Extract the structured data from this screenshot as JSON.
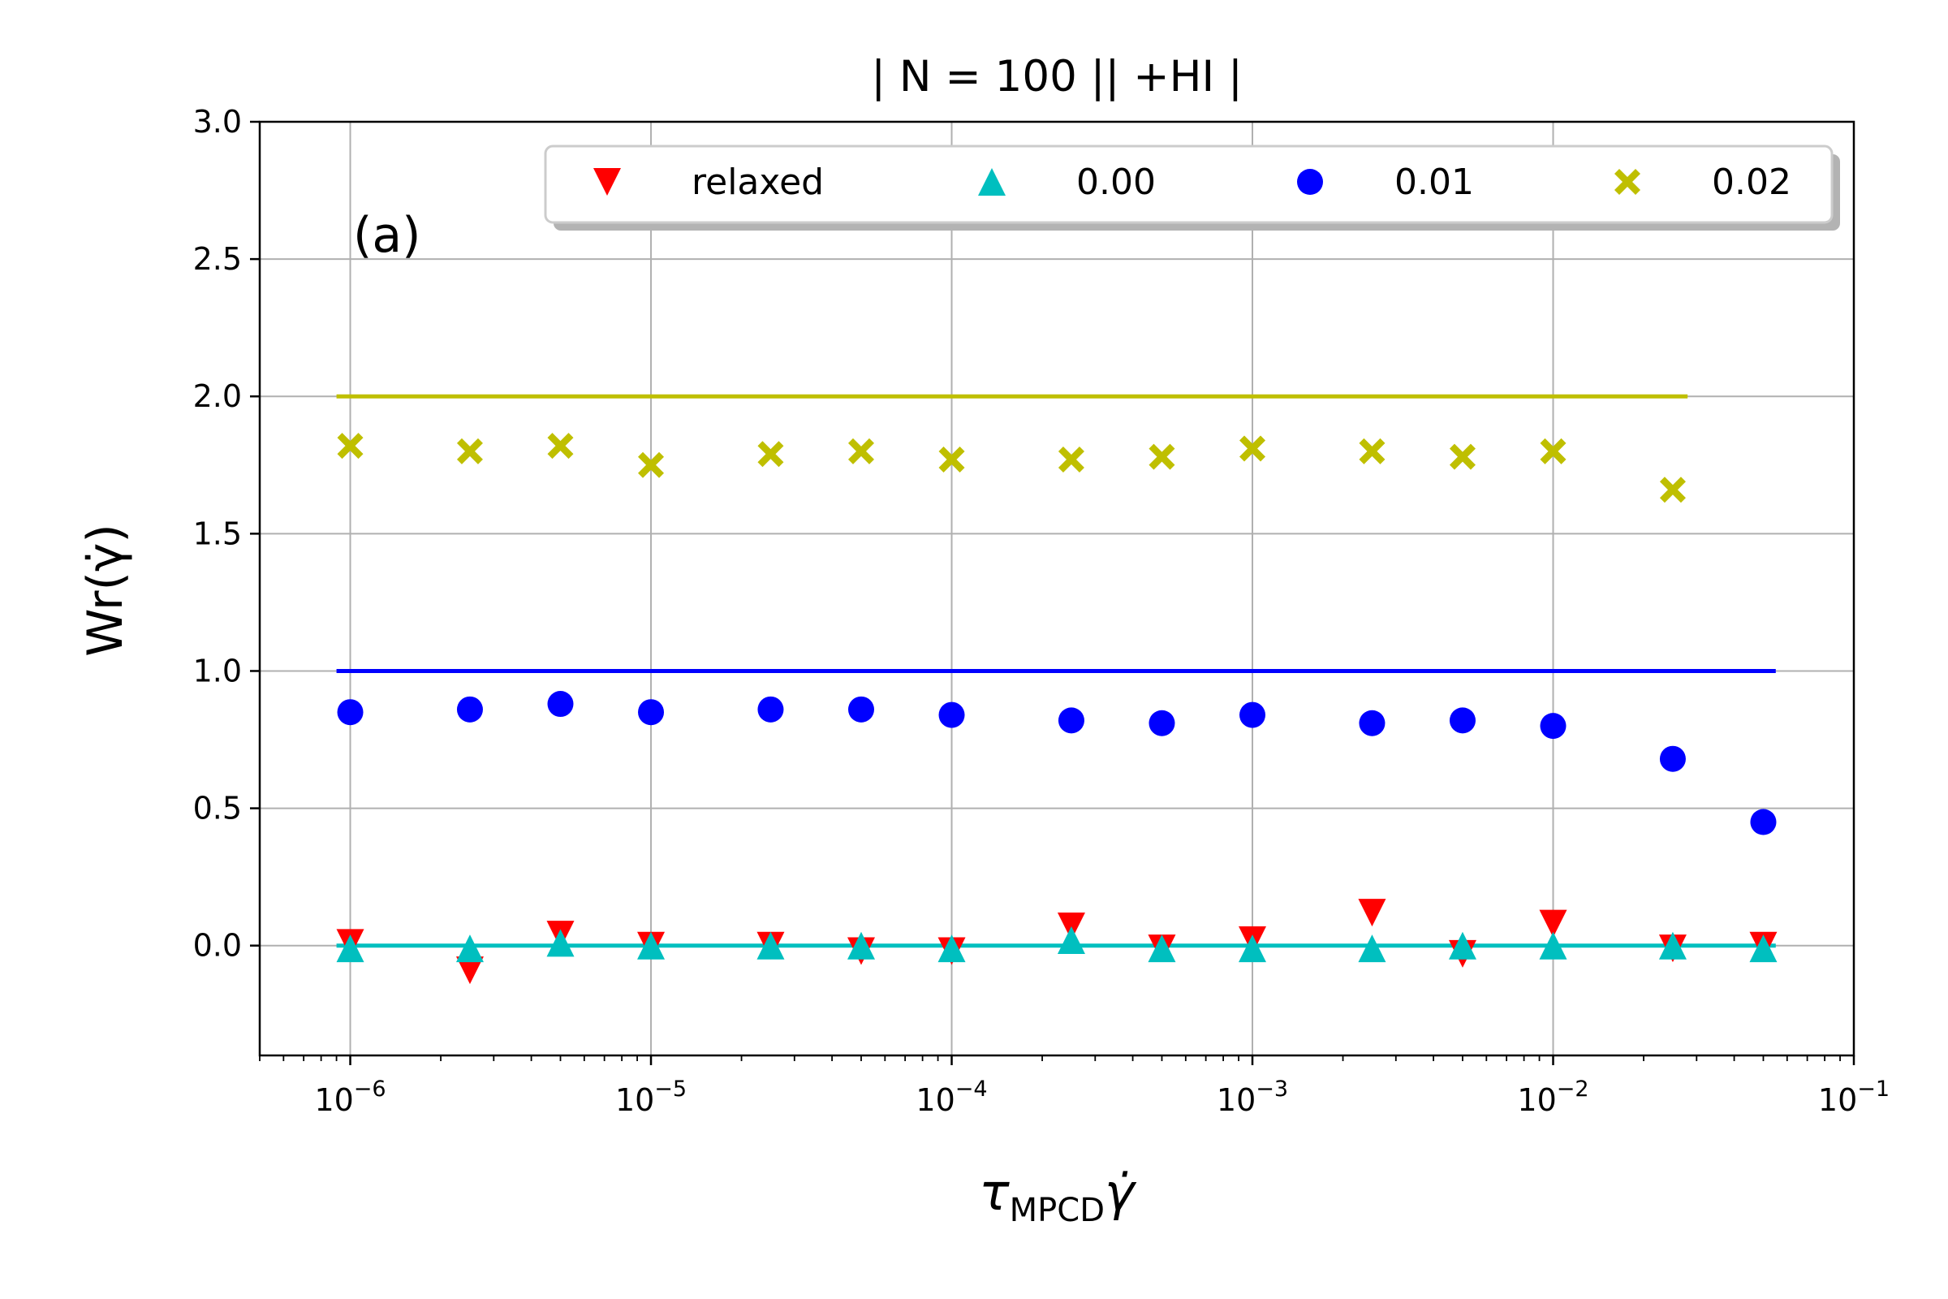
{
  "chart_data": {
    "type": "scatter",
    "title": "| N = 100 || +HI  |",
    "panel_label": "(a)",
    "xlabel": {
      "main": "τ",
      "sub": "MPCD",
      "tail": "γ̇"
    },
    "ylabel": "Wr(γ̇)",
    "xscale": "log",
    "xlim": [
      5e-07,
      0.1
    ],
    "ylim": [
      -0.4,
      3.0
    ],
    "grid": true,
    "legend_position": "top-right",
    "x_ticks": [
      {
        "value": 1e-06,
        "base": "10",
        "exp": "−6"
      },
      {
        "value": 1e-05,
        "base": "10",
        "exp": "−5"
      },
      {
        "value": 0.0001,
        "base": "10",
        "exp": "−4"
      },
      {
        "value": 0.001,
        "base": "10",
        "exp": "−3"
      },
      {
        "value": 0.01,
        "base": "10",
        "exp": "−2"
      },
      {
        "value": 0.1,
        "base": "10",
        "exp": "−1"
      }
    ],
    "y_ticks": [
      {
        "value": 0.0,
        "label": "0.0"
      },
      {
        "value": 0.5,
        "label": "0.5"
      },
      {
        "value": 1.0,
        "label": "1.0"
      },
      {
        "value": 1.5,
        "label": "1.5"
      },
      {
        "value": 2.0,
        "label": "2.0"
      },
      {
        "value": 2.5,
        "label": "2.5"
      },
      {
        "value": 3.0,
        "label": "3.0"
      }
    ],
    "x": [
      1e-06,
      2.5e-06,
      5e-06,
      1e-05,
      2.5e-05,
      5e-05,
      0.0001,
      0.00025,
      0.0005,
      0.001,
      0.0025,
      0.005,
      0.01,
      0.025,
      0.05
    ],
    "series": [
      {
        "name": "relaxed",
        "marker": "triangle-down",
        "color": "#ff0000",
        "values": [
          0.01,
          -0.09,
          0.04,
          0.0,
          0.0,
          -0.02,
          -0.02,
          0.07,
          -0.01,
          0.02,
          0.12,
          -0.03,
          0.08,
          -0.01,
          0.0
        ]
      },
      {
        "name": "0.00",
        "marker": "triangle-up",
        "color": "#00bfbf",
        "values": [
          -0.01,
          -0.01,
          0.01,
          0.0,
          0.0,
          0.0,
          -0.01,
          0.02,
          -0.01,
          -0.01,
          -0.01,
          0.0,
          0.0,
          0.0,
          -0.01
        ]
      },
      {
        "name": "0.01",
        "marker": "circle",
        "color": "#0000ff",
        "values": [
          0.85,
          0.86,
          0.88,
          0.85,
          0.86,
          0.86,
          0.84,
          0.82,
          0.81,
          0.84,
          0.81,
          0.82,
          0.8,
          0.68,
          0.45
        ]
      },
      {
        "name": "0.02",
        "marker": "x-filled",
        "color": "#bfbf00",
        "values": [
          1.82,
          1.8,
          1.82,
          1.75,
          1.79,
          1.8,
          1.77,
          1.77,
          1.78,
          1.81,
          1.8,
          1.78,
          1.8,
          1.66,
          null
        ]
      }
    ],
    "reference_lines": [
      {
        "y": 2.0,
        "x_start": 9e-07,
        "x_end": 0.028,
        "color": "#bfbf00"
      },
      {
        "y": 1.0,
        "x_start": 9e-07,
        "x_end": 0.055,
        "color": "#0000ff"
      },
      {
        "y": 0.0,
        "x_start": 9e-07,
        "x_end": 0.055,
        "color": "#00bfbf"
      }
    ]
  }
}
